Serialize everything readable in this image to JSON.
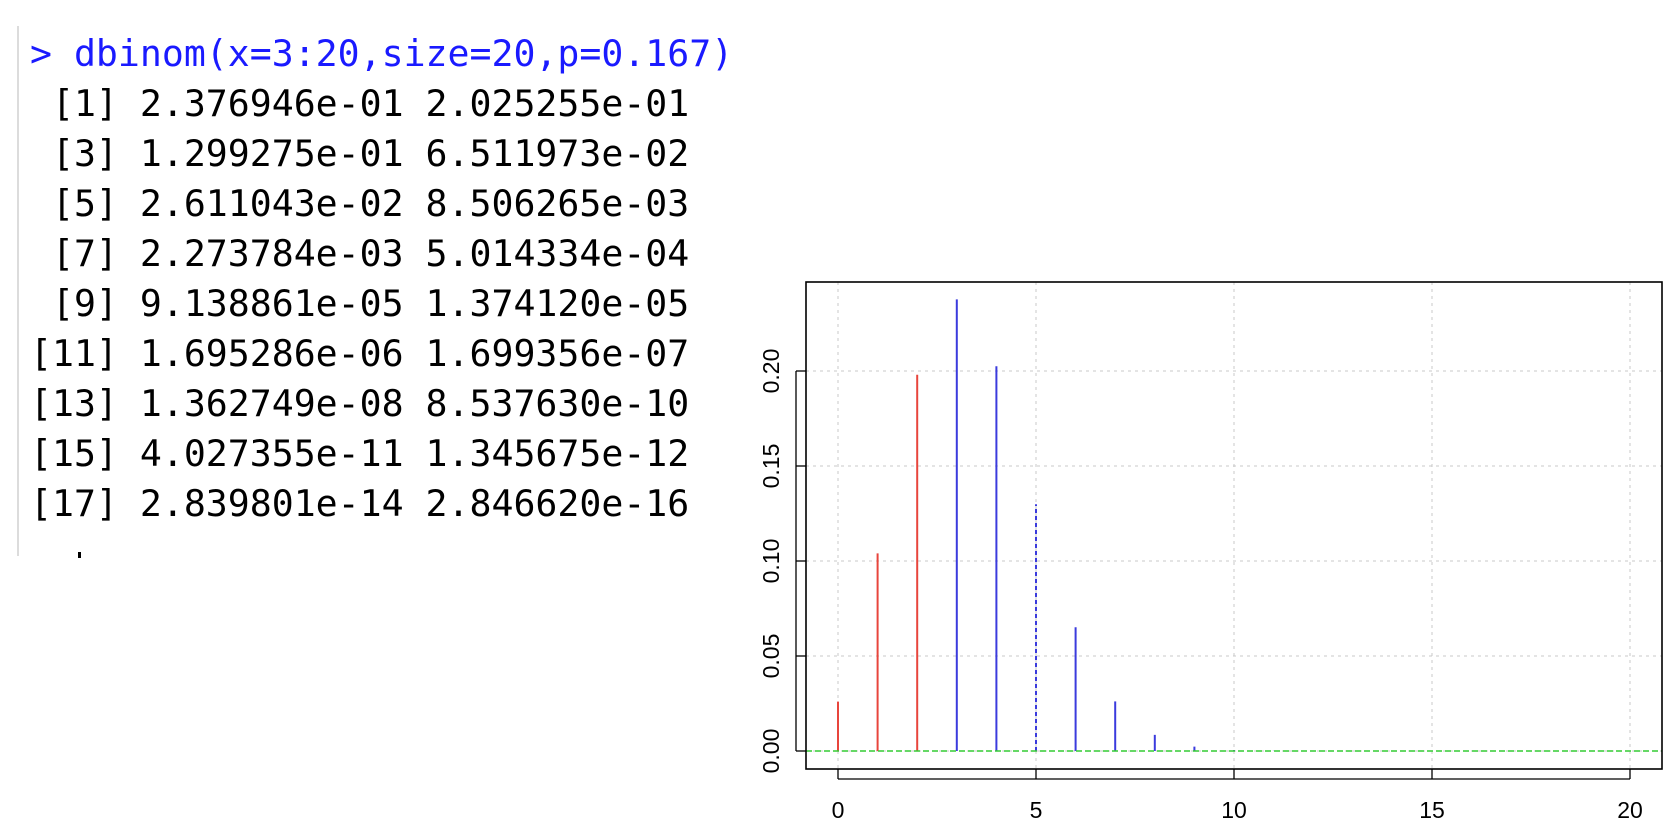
{
  "console": {
    "command": "> dbinom(x=3:20,size=20,p=0.167)",
    "output": [
      " [1] 2.376946e-01 2.025255e-01",
      " [3] 1.299275e-01 6.511973e-02",
      " [5] 2.611043e-02 8.506265e-03",
      " [7] 2.273784e-03 5.014334e-04",
      " [9] 9.138861e-05 1.374120e-05",
      "[11] 1.695286e-06 1.699356e-07",
      "[13] 1.362749e-08 8.537630e-10",
      "[15] 4.027355e-11 1.345675e-12",
      "[17] 2.839801e-14 2.846620e-16"
    ]
  },
  "colors": {
    "command": "#1a1aff",
    "lower_bars": "#e8453c",
    "upper_bars": "#3b3bdd",
    "baseline": "#33cc33",
    "title": "#1a5cff"
  },
  "chart_data": {
    "type": "bar",
    "title": "",
    "xlabel": "",
    "ylabel": "",
    "xlim": [
      0,
      20
    ],
    "ylim": [
      0,
      0.25
    ],
    "xticks": [
      "0",
      "5",
      "10",
      "15",
      "20"
    ],
    "yticks": [
      "0.00",
      "0.05",
      "0.10",
      "0.15",
      "0.20"
    ],
    "grid": true,
    "x": [
      0,
      1,
      2,
      3,
      4,
      5,
      6,
      7,
      8,
      9,
      10,
      11,
      12,
      13,
      14,
      15,
      16,
      17,
      18,
      19,
      20
    ],
    "values": [
      0.026,
      0.104,
      0.198,
      0.2377,
      0.2025,
      0.1299,
      0.0651,
      0.0261,
      0.0085,
      0.0023,
      0.0005,
      0.0001,
      0.0,
      0.0,
      0.0,
      0.0,
      0.0,
      0.0,
      0.0,
      0.0,
      0.0
    ],
    "series_colors": [
      "#e8453c",
      "#e8453c",
      "#e8453c",
      "#3b3bdd",
      "#3b3bdd",
      "#3b3bdd",
      "#3b3bdd",
      "#3b3bdd",
      "#3b3bdd",
      "#3b3bdd",
      "#3b3bdd",
      "#3b3bdd",
      "#3b3bdd",
      "#3b3bdd",
      "#3b3bdd",
      "#3b3bdd",
      "#3b3bdd",
      "#3b3bdd",
      "#3b3bdd",
      "#3b3bdd",
      "#3b3bdd"
    ],
    "dashed_index": 5
  }
}
